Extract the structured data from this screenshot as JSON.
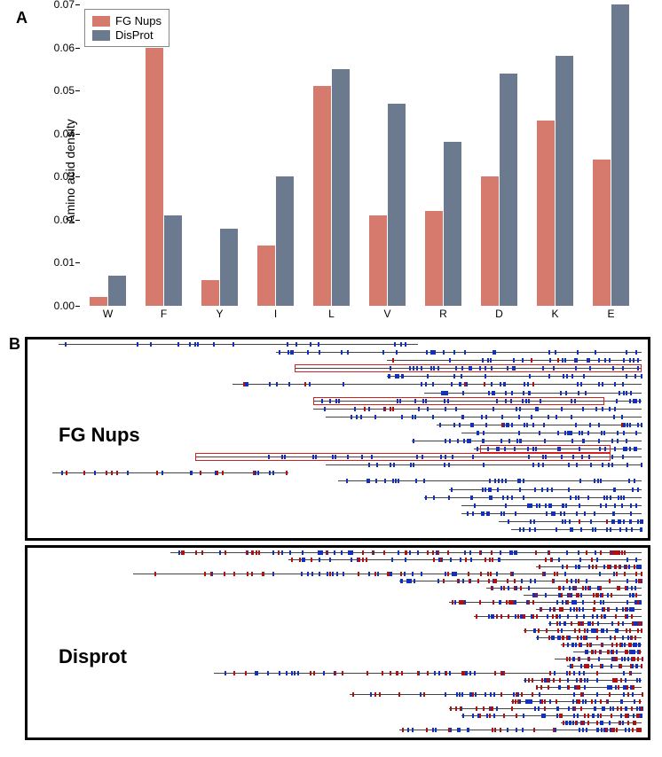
{
  "panel_a": {
    "label": "A",
    "ylabel": "Amino acid density",
    "legend": [
      {
        "label": "FG Nups",
        "color": "#d67a6e"
      },
      {
        "label": "DisProt",
        "color": "#6b7a8f"
      }
    ],
    "categories": [
      "W",
      "F",
      "Y",
      "I",
      "L",
      "V",
      "R",
      "D",
      "K",
      "E"
    ],
    "series": {
      "fg": [
        0.002,
        0.06,
        0.006,
        0.014,
        0.051,
        0.021,
        0.022,
        0.03,
        0.043,
        0.034
      ],
      "disprot": [
        0.007,
        0.021,
        0.018,
        0.03,
        0.055,
        0.047,
        0.038,
        0.054,
        0.058,
        0.07
      ]
    },
    "colors": {
      "fg": "#d67a6e",
      "disprot": "#6b7a8f"
    },
    "ylim": [
      0.0,
      0.07
    ],
    "ytick_step": 0.01,
    "bar_width": 0.32,
    "fontsize": {
      "label": 14,
      "tick": 12,
      "legend": 13
    }
  },
  "panel_b": {
    "label": "B",
    "top": {
      "title": "FG Nups",
      "n_lines": 24,
      "line_color": "#444444",
      "blue": "#1030c0",
      "red": "#b01010",
      "self_color": "#c01010",
      "highlight_box_color": "#d92020",
      "lines": [
        {
          "start": 0.05,
          "end": 0.63,
          "blue_d": 0.04,
          "red_d": 0.0
        },
        {
          "start": 0.4,
          "end": 0.99,
          "blue_d": 0.06,
          "red_d": 0.0
        },
        {
          "start": 0.58,
          "end": 0.99,
          "blue_d": 0.08,
          "red_d": 0.01
        },
        {
          "start": 0.43,
          "end": 0.99,
          "blue_d": 0.07,
          "red_d": 0.0,
          "box": true
        },
        {
          "start": 0.58,
          "end": 0.99,
          "blue_d": 0.07,
          "red_d": 0.0
        },
        {
          "start": 0.33,
          "end": 0.99,
          "blue_d": 0.06,
          "red_d": 0.01
        },
        {
          "start": 0.64,
          "end": 0.99,
          "blue_d": 0.09,
          "red_d": 0.0
        },
        {
          "start": 0.46,
          "end": 0.99,
          "blue_d": 0.07,
          "red_d": 0.0,
          "box": true,
          "box_end": 0.93
        },
        {
          "start": 0.46,
          "end": 0.99,
          "blue_d": 0.05,
          "red_d": 0.01
        },
        {
          "start": 0.48,
          "end": 0.99,
          "blue_d": 0.06,
          "red_d": 0.0
        },
        {
          "start": 0.66,
          "end": 0.99,
          "blue_d": 0.1,
          "red_d": 0.01
        },
        {
          "start": 0.7,
          "end": 0.99,
          "blue_d": 0.1,
          "red_d": 0.0
        },
        {
          "start": 0.62,
          "end": 0.99,
          "blue_d": 0.09,
          "red_d": 0.0
        },
        {
          "start": 0.72,
          "end": 0.99,
          "blue_d": 0.11,
          "red_d": 0.0,
          "box2": {
            "start": 0.73,
            "end": 0.94
          }
        },
        {
          "start": 0.27,
          "end": 0.99,
          "blue_d": 0.05,
          "red_d": 0.0,
          "box": true,
          "box_end": 0.94
        },
        {
          "start": 0.48,
          "end": 0.99,
          "blue_d": 0.06,
          "red_d": 0.0
        },
        {
          "start": 0.04,
          "end": 0.42,
          "blue_d": 0.05,
          "red_d": 0.04
        },
        {
          "start": 0.5,
          "end": 0.99,
          "blue_d": 0.07,
          "red_d": 0.0
        },
        {
          "start": 0.68,
          "end": 0.99,
          "blue_d": 0.08,
          "red_d": 0.0
        },
        {
          "start": 0.64,
          "end": 0.99,
          "blue_d": 0.1,
          "red_d": 0.0
        },
        {
          "start": 0.7,
          "end": 0.99,
          "blue_d": 0.1,
          "red_d": 0.0
        },
        {
          "start": 0.7,
          "end": 0.99,
          "blue_d": 0.11,
          "red_d": 0.0
        },
        {
          "start": 0.76,
          "end": 0.99,
          "blue_d": 0.12,
          "red_d": 0.01
        },
        {
          "start": 0.78,
          "end": 0.99,
          "blue_d": 0.12,
          "red_d": 0.0
        }
      ]
    },
    "bottom": {
      "title": "Disprot",
      "n_lines": 26,
      "line_color": "#444444",
      "blue": "#1030c0",
      "red": "#b01010",
      "lines": [
        {
          "start": 0.23,
          "end": 0.99,
          "blue_d": 0.07,
          "red_d": 0.07
        },
        {
          "start": 0.42,
          "end": 0.99,
          "blue_d": 0.06,
          "red_d": 0.04
        },
        {
          "start": 0.82,
          "end": 0.99,
          "blue_d": 0.14,
          "red_d": 0.1
        },
        {
          "start": 0.17,
          "end": 0.99,
          "blue_d": 0.05,
          "red_d": 0.05
        },
        {
          "start": 0.6,
          "end": 0.99,
          "blue_d": 0.09,
          "red_d": 0.06
        },
        {
          "start": 0.74,
          "end": 0.99,
          "blue_d": 0.12,
          "red_d": 0.08
        },
        {
          "start": 0.8,
          "end": 0.99,
          "blue_d": 0.13,
          "red_d": 0.09
        },
        {
          "start": 0.68,
          "end": 0.99,
          "blue_d": 0.1,
          "red_d": 0.07
        },
        {
          "start": 0.82,
          "end": 0.99,
          "blue_d": 0.14,
          "red_d": 0.1
        },
        {
          "start": 0.72,
          "end": 0.99,
          "blue_d": 0.11,
          "red_d": 0.08
        },
        {
          "start": 0.84,
          "end": 0.99,
          "blue_d": 0.15,
          "red_d": 0.1
        },
        {
          "start": 0.8,
          "end": 0.99,
          "blue_d": 0.13,
          "red_d": 0.09
        },
        {
          "start": 0.82,
          "end": 0.99,
          "blue_d": 0.14,
          "red_d": 0.09
        },
        {
          "start": 0.86,
          "end": 0.99,
          "blue_d": 0.16,
          "red_d": 0.11
        },
        {
          "start": 0.88,
          "end": 0.99,
          "blue_d": 0.17,
          "red_d": 0.12
        },
        {
          "start": 0.85,
          "end": 0.99,
          "blue_d": 0.15,
          "red_d": 0.1
        },
        {
          "start": 0.87,
          "end": 0.99,
          "blue_d": 0.16,
          "red_d": 0.11
        },
        {
          "start": 0.3,
          "end": 0.99,
          "blue_d": 0.06,
          "red_d": 0.05
        },
        {
          "start": 0.8,
          "end": 0.99,
          "blue_d": 0.13,
          "red_d": 0.09
        },
        {
          "start": 0.82,
          "end": 0.99,
          "blue_d": 0.14,
          "red_d": 0.1
        },
        {
          "start": 0.52,
          "end": 0.99,
          "blue_d": 0.07,
          "red_d": 0.05
        },
        {
          "start": 0.78,
          "end": 0.99,
          "blue_d": 0.12,
          "red_d": 0.08
        },
        {
          "start": 0.68,
          "end": 0.99,
          "blue_d": 0.1,
          "red_d": 0.07
        },
        {
          "start": 0.7,
          "end": 0.99,
          "blue_d": 0.11,
          "red_d": 0.07
        },
        {
          "start": 0.86,
          "end": 0.99,
          "blue_d": 0.16,
          "red_d": 0.11
        },
        {
          "start": 0.6,
          "end": 0.99,
          "blue_d": 0.09,
          "red_d": 0.06
        }
      ]
    }
  }
}
